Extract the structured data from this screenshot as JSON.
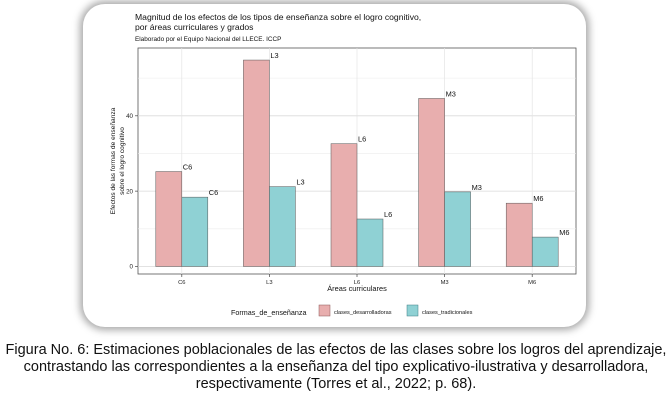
{
  "chart_data": {
    "type": "bar",
    "title": "Magnitud de los efectos de los tipos de enseñanza sobre el logro cognitivo,",
    "title_line2": "por áreas curriculares y grados",
    "subtitle": "Elaborado por el Equipo Nacional del LLECE. ICCP",
    "xlabel": "Áreas curriculares",
    "ylabel_line1": "Efectos de las formas de enseñanza",
    "ylabel_line2": "sobre el logro cognitivo",
    "categories": [
      "C6",
      "L3",
      "L6",
      "M3",
      "M6"
    ],
    "ylim": [
      -2,
      58
    ],
    "yticks": [
      0,
      20,
      40
    ],
    "grid": true,
    "series": [
      {
        "name": "clases_desarrolladoras",
        "color": "#e8aeae",
        "values": [
          25.2,
          54.8,
          32.6,
          44.6,
          16.8
        ],
        "labels": [
          "C6",
          "L3",
          "L6",
          "M3",
          "M6"
        ]
      },
      {
        "name": "clases_tradicionales",
        "color": "#8fd1d4",
        "values": [
          18.4,
          21.2,
          12.6,
          19.8,
          7.8
        ],
        "labels": [
          "C6",
          "L3",
          "L6",
          "M3",
          "M6"
        ]
      }
    ],
    "legend": {
      "title": "Formas_de_enseñanza",
      "position": "bottom"
    }
  },
  "caption": "Figura No. 6: Estimaciones poblacionales de las efectos de las clases sobre los logros del aprendizaje, contrastando las correspondientes a la enseñanza del tipo explicativo-ilustrativa y desarrolladora, respectivamente (Torres et al., 2022; p. 68)."
}
